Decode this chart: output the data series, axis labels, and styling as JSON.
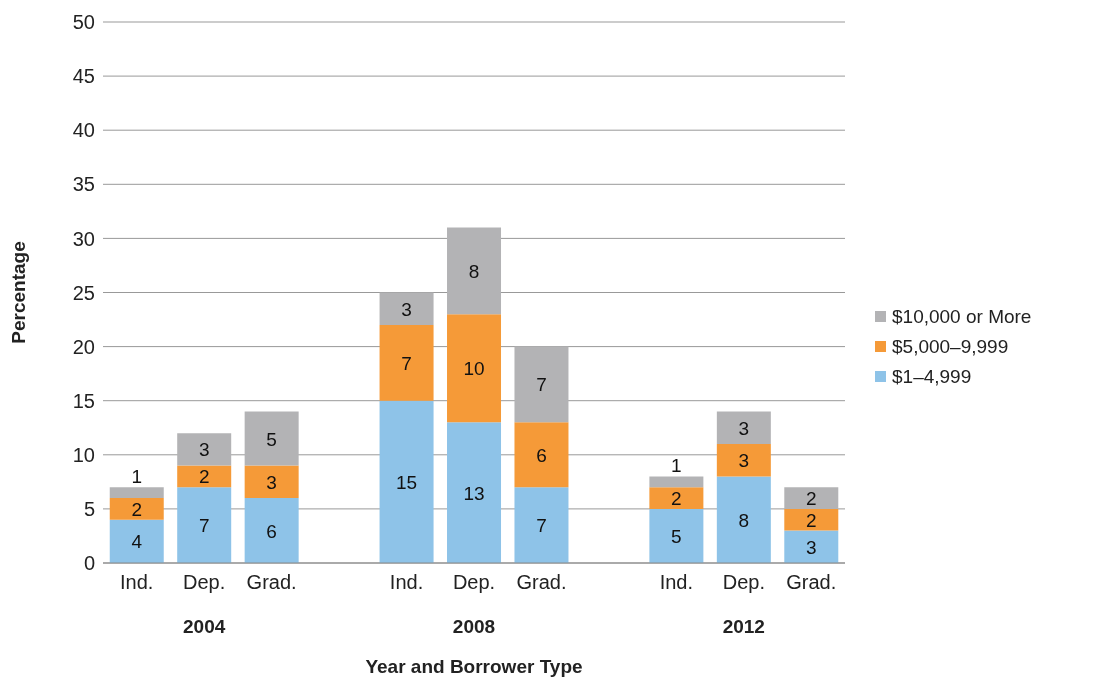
{
  "chart_data": {
    "type": "bar",
    "stacked": true,
    "xlabel": "Year and Borrower Type",
    "ylabel": "Percentage",
    "categories": [
      "Ind.",
      "Dep.",
      "Grad.",
      null,
      "Ind.",
      "Dep.",
      "Grad.",
      null,
      "Ind.",
      "Dep.",
      "Grad."
    ],
    "series": [
      {
        "name": "$1–4,999",
        "color": "#8ec3e8",
        "values": [
          4,
          7,
          6,
          null,
          15,
          13,
          7,
          null,
          5,
          8,
          3
        ]
      },
      {
        "name": "$5,000–9,999",
        "color": "#f59a38",
        "values": [
          2,
          2,
          3,
          null,
          7,
          10,
          6,
          null,
          2,
          3,
          2
        ]
      },
      {
        "name": "$10,000 or More",
        "color": "#b3b3b5",
        "values": [
          1,
          3,
          5,
          null,
          3,
          8,
          7,
          null,
          1,
          3,
          2
        ]
      }
    ],
    "annotations": [
      "2004",
      "2008",
      "2012"
    ],
    "ylim": [
      0,
      50
    ],
    "yticks": [
      0,
      5,
      10,
      15,
      20,
      25,
      30,
      35,
      40,
      45,
      50
    ],
    "grid": "y",
    "legend": "right",
    "data_labels": true
  }
}
